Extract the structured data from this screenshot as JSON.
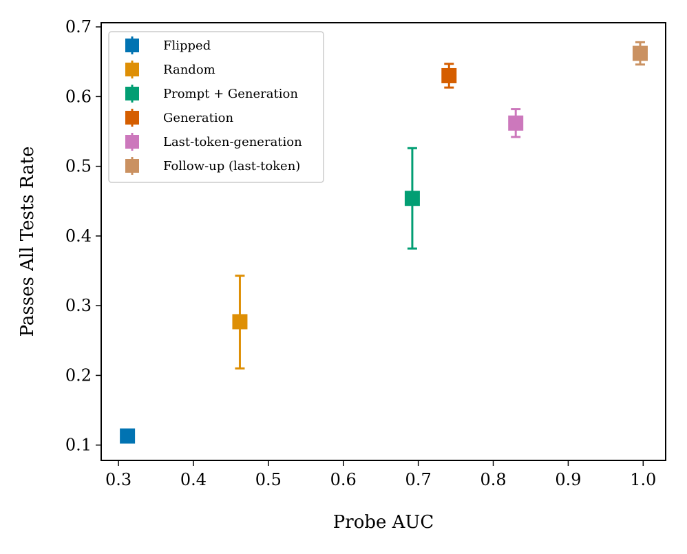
{
  "chart_data": {
    "type": "scatter",
    "title": "",
    "xlabel": "Probe AUC",
    "ylabel": "Passes All Tests Rate",
    "xlim": [
      0.277,
      1.03
    ],
    "ylim": [
      0.078,
      0.706
    ],
    "xticks": [
      0.3,
      0.4,
      0.5,
      0.6,
      0.7,
      0.8,
      0.9,
      1.0
    ],
    "xtick_labels": [
      "0.3",
      "0.4",
      "0.5",
      "0.6",
      "0.7",
      "0.8",
      "0.9",
      "1.0"
    ],
    "yticks": [
      0.1,
      0.2,
      0.3,
      0.4,
      0.5,
      0.6,
      0.7
    ],
    "ytick_labels": [
      "0.1",
      "0.2",
      "0.3",
      "0.4",
      "0.5",
      "0.6",
      "0.7"
    ],
    "grid": false,
    "legend_position": "top-left",
    "series": [
      {
        "name": "Flipped",
        "color": "#0173b2",
        "x": 0.312,
        "y": 0.113,
        "err_low": 0.113,
        "err_high": 0.113
      },
      {
        "name": "Random",
        "color": "#de8f05",
        "x": 0.462,
        "y": 0.277,
        "err_low": 0.21,
        "err_high": 0.343
      },
      {
        "name": "Prompt + Generation",
        "color": "#029e73",
        "x": 0.692,
        "y": 0.454,
        "err_low": 0.382,
        "err_high": 0.526
      },
      {
        "name": "Generation",
        "color": "#d55e00",
        "x": 0.741,
        "y": 0.63,
        "err_low": 0.613,
        "err_high": 0.647
      },
      {
        "name": "Last-token-generation",
        "color": "#cc78bc",
        "x": 0.83,
        "y": 0.562,
        "err_low": 0.542,
        "err_high": 0.582
      },
      {
        "name": "Follow-up (last-token)",
        "color": "#ca9161",
        "x": 0.996,
        "y": 0.662,
        "err_low": 0.646,
        "err_high": 0.678
      }
    ]
  }
}
